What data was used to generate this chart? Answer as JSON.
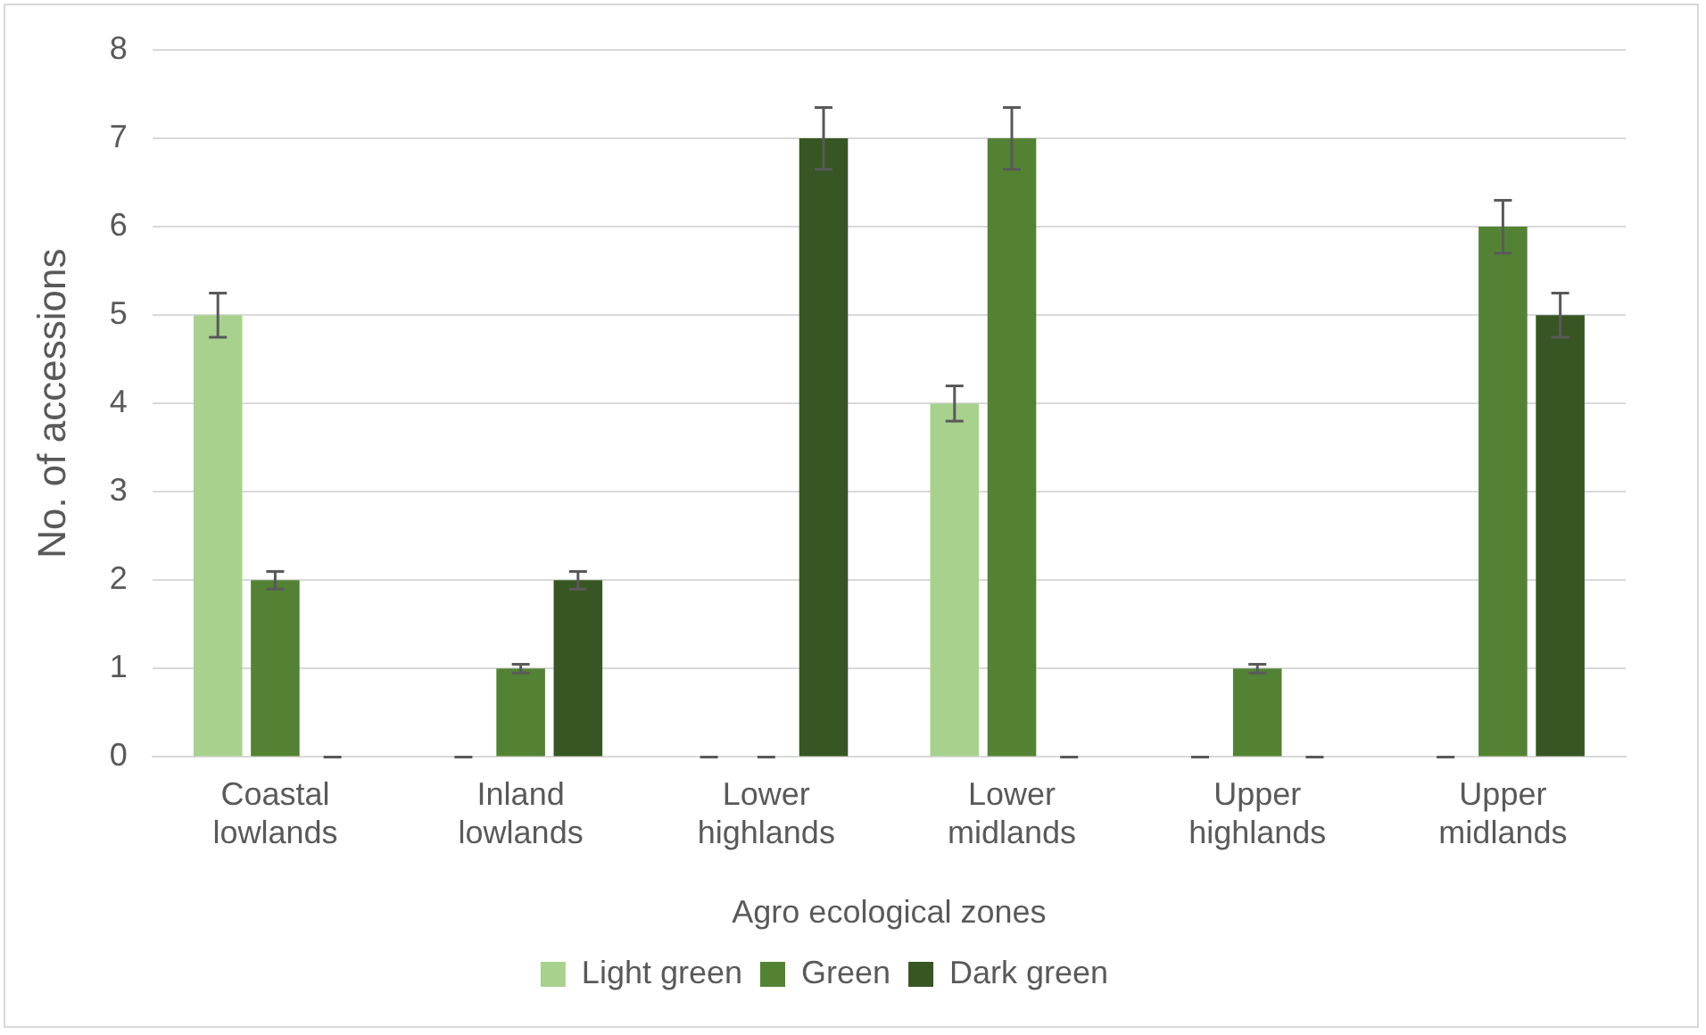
{
  "chart_data": {
    "type": "bar",
    "xlabel": "Agro ecological zones",
    "ylabel": "No. of accessions",
    "categories": [
      "Coastal lowlands",
      "Inland lowlands",
      "Lower highlands",
      "Lower midlands",
      "Upper highlands",
      "Upper midlands"
    ],
    "series": [
      {
        "name": "Light green",
        "color": "#a9d18e",
        "values": [
          5,
          0,
          0,
          4,
          0,
          0
        ],
        "errors": [
          0.25,
          0,
          0,
          0.2,
          0,
          0
        ]
      },
      {
        "name": "Green",
        "color": "#548235",
        "values": [
          2,
          1,
          0,
          7,
          1,
          6
        ],
        "errors": [
          0.1,
          0.05,
          0,
          0.35,
          0.05,
          0.3
        ]
      },
      {
        "name": "Dark green",
        "color": "#375623",
        "values": [
          0,
          2,
          7,
          0,
          0,
          5
        ],
        "errors": [
          0,
          0.1,
          0.35,
          0,
          0,
          0.25
        ]
      }
    ],
    "ylim": [
      0,
      8
    ],
    "yticks": [
      0,
      1,
      2,
      3,
      4,
      5,
      6,
      7,
      8
    ],
    "grid": "y",
    "legend": "bottom"
  }
}
